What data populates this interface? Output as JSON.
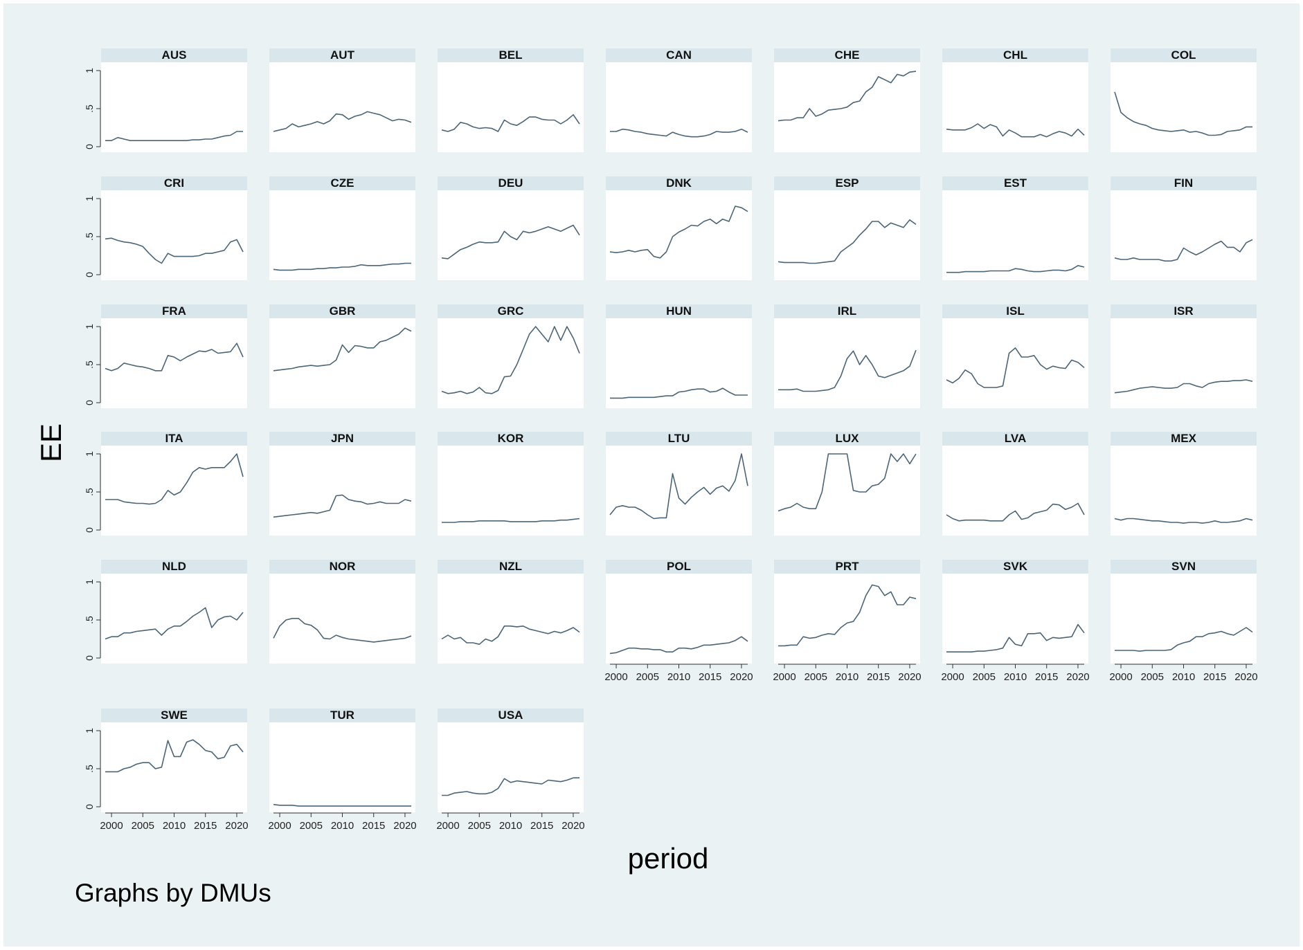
{
  "figure": {
    "ylabel": "EE",
    "xlabel": "period",
    "note": "Graphs by DMUs",
    "colors": {
      "outer_bg": "#eaf2f3",
      "panel_bg": "#ffffff",
      "strip_bg": "#d9e6eb",
      "line": "#4a6478",
      "text": "#000000"
    }
  },
  "chart_data": {
    "type": "line",
    "title": "",
    "xlabel": "period",
    "ylabel": "EE",
    "ylim": [
      0,
      1
    ],
    "xlim": [
      1999,
      2021
    ],
    "xticks": [
      "2000",
      "2005",
      "2010",
      "2015",
      "2020"
    ],
    "yticks": [
      "0",
      ".5",
      "1"
    ],
    "grid": false,
    "x": [
      1999,
      2000,
      2001,
      2002,
      2003,
      2004,
      2005,
      2006,
      2007,
      2008,
      2009,
      2010,
      2011,
      2012,
      2013,
      2014,
      2015,
      2016,
      2017,
      2018,
      2019,
      2020,
      2021
    ],
    "panels": [
      {
        "name": "AUS",
        "values": [
          0.08,
          0.08,
          0.12,
          0.1,
          0.08,
          0.08,
          0.08,
          0.08,
          0.08,
          0.08,
          0.08,
          0.08,
          0.08,
          0.08,
          0.09,
          0.09,
          0.1,
          0.1,
          0.12,
          0.14,
          0.15,
          0.2,
          0.2
        ]
      },
      {
        "name": "AUT",
        "values": [
          0.2,
          0.22,
          0.24,
          0.3,
          0.26,
          0.28,
          0.3,
          0.33,
          0.3,
          0.34,
          0.43,
          0.42,
          0.36,
          0.4,
          0.42,
          0.46,
          0.44,
          0.42,
          0.38,
          0.34,
          0.36,
          0.35,
          0.32
        ]
      },
      {
        "name": "BEL",
        "values": [
          0.22,
          0.2,
          0.23,
          0.32,
          0.3,
          0.26,
          0.24,
          0.25,
          0.24,
          0.2,
          0.35,
          0.3,
          0.28,
          0.33,
          0.39,
          0.39,
          0.36,
          0.35,
          0.35,
          0.3,
          0.35,
          0.42,
          0.3
        ]
      },
      {
        "name": "CAN",
        "values": [
          0.2,
          0.2,
          0.23,
          0.22,
          0.2,
          0.19,
          0.17,
          0.16,
          0.15,
          0.14,
          0.19,
          0.16,
          0.14,
          0.13,
          0.13,
          0.14,
          0.16,
          0.2,
          0.19,
          0.19,
          0.2,
          0.23,
          0.19
        ]
      },
      {
        "name": "CHE",
        "values": [
          0.34,
          0.35,
          0.35,
          0.38,
          0.38,
          0.5,
          0.4,
          0.43,
          0.48,
          0.49,
          0.5,
          0.52,
          0.58,
          0.6,
          0.72,
          0.78,
          0.92,
          0.88,
          0.84,
          0.95,
          0.93,
          0.98,
          0.99
        ]
      },
      {
        "name": "CHL",
        "values": [
          0.23,
          0.22,
          0.22,
          0.22,
          0.25,
          0.3,
          0.24,
          0.29,
          0.26,
          0.14,
          0.22,
          0.18,
          0.13,
          0.13,
          0.13,
          0.16,
          0.13,
          0.17,
          0.2,
          0.18,
          0.14,
          0.23,
          0.15
        ]
      },
      {
        "name": "COL",
        "values": [
          0.72,
          0.45,
          0.38,
          0.33,
          0.3,
          0.28,
          0.24,
          0.22,
          0.21,
          0.2,
          0.21,
          0.22,
          0.19,
          0.2,
          0.18,
          0.15,
          0.15,
          0.16,
          0.2,
          0.21,
          0.22,
          0.26,
          0.26
        ]
      },
      {
        "name": "CRI",
        "values": [
          0.47,
          0.48,
          0.45,
          0.43,
          0.42,
          0.4,
          0.37,
          0.28,
          0.2,
          0.15,
          0.28,
          0.24,
          0.24,
          0.24,
          0.24,
          0.25,
          0.28,
          0.28,
          0.3,
          0.32,
          0.43,
          0.46,
          0.3
        ]
      },
      {
        "name": "CZE",
        "values": [
          0.07,
          0.06,
          0.06,
          0.06,
          0.07,
          0.07,
          0.07,
          0.08,
          0.08,
          0.09,
          0.09,
          0.1,
          0.1,
          0.11,
          0.13,
          0.12,
          0.12,
          0.12,
          0.13,
          0.14,
          0.14,
          0.15,
          0.15
        ]
      },
      {
        "name": "DEU",
        "values": [
          0.22,
          0.21,
          0.27,
          0.33,
          0.36,
          0.4,
          0.43,
          0.42,
          0.42,
          0.43,
          0.57,
          0.5,
          0.46,
          0.57,
          0.55,
          0.57,
          0.6,
          0.63,
          0.6,
          0.57,
          0.61,
          0.65,
          0.52
        ]
      },
      {
        "name": "DNK",
        "values": [
          0.3,
          0.29,
          0.3,
          0.32,
          0.3,
          0.32,
          0.33,
          0.24,
          0.22,
          0.3,
          0.5,
          0.56,
          0.6,
          0.65,
          0.64,
          0.7,
          0.73,
          0.67,
          0.73,
          0.7,
          0.9,
          0.88,
          0.83
        ]
      },
      {
        "name": "ESP",
        "values": [
          0.17,
          0.16,
          0.16,
          0.16,
          0.16,
          0.15,
          0.15,
          0.16,
          0.17,
          0.18,
          0.3,
          0.36,
          0.42,
          0.52,
          0.6,
          0.7,
          0.7,
          0.62,
          0.68,
          0.65,
          0.62,
          0.72,
          0.66
        ]
      },
      {
        "name": "EST",
        "values": [
          0.03,
          0.03,
          0.03,
          0.04,
          0.04,
          0.04,
          0.04,
          0.05,
          0.05,
          0.05,
          0.05,
          0.08,
          0.07,
          0.05,
          0.04,
          0.04,
          0.05,
          0.06,
          0.06,
          0.05,
          0.07,
          0.12,
          0.1
        ]
      },
      {
        "name": "FIN",
        "values": [
          0.22,
          0.2,
          0.2,
          0.22,
          0.2,
          0.2,
          0.2,
          0.2,
          0.18,
          0.18,
          0.2,
          0.35,
          0.3,
          0.26,
          0.3,
          0.35,
          0.4,
          0.44,
          0.36,
          0.36,
          0.3,
          0.42,
          0.46
        ]
      },
      {
        "name": "FRA",
        "values": [
          0.45,
          0.42,
          0.45,
          0.52,
          0.5,
          0.48,
          0.47,
          0.45,
          0.42,
          0.42,
          0.62,
          0.6,
          0.55,
          0.6,
          0.64,
          0.68,
          0.67,
          0.7,
          0.65,
          0.66,
          0.67,
          0.78,
          0.6
        ]
      },
      {
        "name": "GBR",
        "values": [
          0.42,
          0.43,
          0.44,
          0.45,
          0.47,
          0.48,
          0.49,
          0.48,
          0.49,
          0.5,
          0.56,
          0.76,
          0.66,
          0.75,
          0.74,
          0.72,
          0.72,
          0.8,
          0.82,
          0.86,
          0.9,
          0.98,
          0.94
        ]
      },
      {
        "name": "GRC",
        "values": [
          0.15,
          0.12,
          0.13,
          0.15,
          0.12,
          0.14,
          0.2,
          0.13,
          0.12,
          0.16,
          0.34,
          0.35,
          0.5,
          0.7,
          0.9,
          1.0,
          0.9,
          0.8,
          1.0,
          0.82,
          1.0,
          0.85,
          0.65
        ]
      },
      {
        "name": "HUN",
        "values": [
          0.06,
          0.06,
          0.06,
          0.07,
          0.07,
          0.07,
          0.07,
          0.07,
          0.08,
          0.09,
          0.09,
          0.14,
          0.15,
          0.17,
          0.18,
          0.18,
          0.14,
          0.15,
          0.19,
          0.14,
          0.1,
          0.1,
          0.1
        ]
      },
      {
        "name": "IRL",
        "values": [
          0.17,
          0.17,
          0.17,
          0.18,
          0.15,
          0.15,
          0.15,
          0.16,
          0.17,
          0.2,
          0.35,
          0.58,
          0.68,
          0.5,
          0.62,
          0.5,
          0.35,
          0.33,
          0.36,
          0.39,
          0.42,
          0.48,
          0.69
        ]
      },
      {
        "name": "ISL",
        "values": [
          0.3,
          0.26,
          0.32,
          0.43,
          0.38,
          0.25,
          0.2,
          0.2,
          0.2,
          0.22,
          0.65,
          0.72,
          0.6,
          0.6,
          0.62,
          0.5,
          0.44,
          0.48,
          0.46,
          0.45,
          0.56,
          0.53,
          0.46
        ]
      },
      {
        "name": "ISR",
        "values": [
          0.13,
          0.14,
          0.15,
          0.17,
          0.19,
          0.2,
          0.21,
          0.2,
          0.19,
          0.19,
          0.2,
          0.25,
          0.25,
          0.22,
          0.2,
          0.25,
          0.27,
          0.28,
          0.28,
          0.29,
          0.29,
          0.3,
          0.28
        ]
      },
      {
        "name": "ITA",
        "values": [
          0.4,
          0.4,
          0.4,
          0.37,
          0.36,
          0.35,
          0.35,
          0.34,
          0.35,
          0.4,
          0.52,
          0.46,
          0.5,
          0.62,
          0.76,
          0.82,
          0.8,
          0.82,
          0.82,
          0.82,
          0.9,
          1.0,
          0.7
        ]
      },
      {
        "name": "JPN",
        "values": [
          0.17,
          0.18,
          0.19,
          0.2,
          0.21,
          0.22,
          0.23,
          0.22,
          0.24,
          0.26,
          0.45,
          0.46,
          0.4,
          0.38,
          0.37,
          0.34,
          0.35,
          0.37,
          0.35,
          0.35,
          0.35,
          0.4,
          0.38
        ]
      },
      {
        "name": "KOR",
        "values": [
          0.1,
          0.1,
          0.1,
          0.11,
          0.11,
          0.11,
          0.12,
          0.12,
          0.12,
          0.12,
          0.12,
          0.11,
          0.11,
          0.11,
          0.11,
          0.11,
          0.12,
          0.12,
          0.12,
          0.13,
          0.13,
          0.14,
          0.15
        ]
      },
      {
        "name": "LTU",
        "values": [
          0.2,
          0.3,
          0.32,
          0.3,
          0.3,
          0.26,
          0.2,
          0.15,
          0.16,
          0.16,
          0.74,
          0.42,
          0.34,
          0.43,
          0.5,
          0.56,
          0.47,
          0.55,
          0.58,
          0.51,
          0.65,
          1.0,
          0.58
        ]
      },
      {
        "name": "LUX",
        "values": [
          0.25,
          0.28,
          0.3,
          0.35,
          0.3,
          0.28,
          0.28,
          0.5,
          1.0,
          1.0,
          1.0,
          1.0,
          0.52,
          0.5,
          0.5,
          0.58,
          0.6,
          0.68,
          1.0,
          0.9,
          1.0,
          0.87,
          1.0
        ]
      },
      {
        "name": "LVA",
        "values": [
          0.2,
          0.15,
          0.12,
          0.13,
          0.13,
          0.13,
          0.13,
          0.12,
          0.12,
          0.12,
          0.2,
          0.25,
          0.14,
          0.16,
          0.22,
          0.24,
          0.26,
          0.34,
          0.33,
          0.27,
          0.3,
          0.35,
          0.2
        ]
      },
      {
        "name": "MEX",
        "values": [
          0.15,
          0.13,
          0.15,
          0.15,
          0.14,
          0.13,
          0.12,
          0.12,
          0.11,
          0.1,
          0.1,
          0.09,
          0.1,
          0.1,
          0.09,
          0.1,
          0.12,
          0.1,
          0.1,
          0.11,
          0.12,
          0.15,
          0.13
        ]
      },
      {
        "name": "NLD",
        "values": [
          0.25,
          0.28,
          0.28,
          0.33,
          0.33,
          0.35,
          0.36,
          0.37,
          0.38,
          0.3,
          0.38,
          0.42,
          0.42,
          0.48,
          0.55,
          0.6,
          0.66,
          0.4,
          0.5,
          0.54,
          0.55,
          0.5,
          0.6
        ]
      },
      {
        "name": "NOR",
        "values": [
          0.26,
          0.42,
          0.5,
          0.52,
          0.52,
          0.45,
          0.43,
          0.37,
          0.26,
          0.25,
          0.3,
          0.27,
          0.25,
          0.24,
          0.23,
          0.22,
          0.21,
          0.22,
          0.23,
          0.24,
          0.25,
          0.26,
          0.29
        ]
      },
      {
        "name": "NZL",
        "values": [
          0.25,
          0.3,
          0.25,
          0.27,
          0.2,
          0.2,
          0.18,
          0.25,
          0.22,
          0.28,
          0.42,
          0.42,
          0.41,
          0.42,
          0.38,
          0.36,
          0.34,
          0.32,
          0.35,
          0.33,
          0.36,
          0.4,
          0.34
        ]
      },
      {
        "name": "POL",
        "values": [
          0.06,
          0.07,
          0.1,
          0.13,
          0.13,
          0.12,
          0.12,
          0.11,
          0.11,
          0.08,
          0.08,
          0.13,
          0.13,
          0.12,
          0.14,
          0.17,
          0.17,
          0.18,
          0.19,
          0.2,
          0.23,
          0.28,
          0.22
        ]
      },
      {
        "name": "PRT",
        "values": [
          0.16,
          0.16,
          0.17,
          0.17,
          0.28,
          0.26,
          0.27,
          0.3,
          0.32,
          0.31,
          0.4,
          0.46,
          0.48,
          0.6,
          0.82,
          0.96,
          0.94,
          0.82,
          0.87,
          0.7,
          0.7,
          0.8,
          0.78
        ]
      },
      {
        "name": "SVK",
        "values": [
          0.08,
          0.08,
          0.08,
          0.08,
          0.08,
          0.09,
          0.09,
          0.1,
          0.11,
          0.13,
          0.27,
          0.18,
          0.16,
          0.32,
          0.32,
          0.33,
          0.23,
          0.27,
          0.26,
          0.27,
          0.28,
          0.44,
          0.33
        ]
      },
      {
        "name": "SVN",
        "values": [
          0.1,
          0.1,
          0.1,
          0.1,
          0.09,
          0.1,
          0.1,
          0.1,
          0.1,
          0.11,
          0.17,
          0.2,
          0.22,
          0.28,
          0.28,
          0.32,
          0.33,
          0.35,
          0.32,
          0.3,
          0.35,
          0.4,
          0.34
        ]
      },
      {
        "name": "SWE",
        "values": [
          0.46,
          0.46,
          0.46,
          0.5,
          0.52,
          0.56,
          0.58,
          0.58,
          0.5,
          0.52,
          0.87,
          0.66,
          0.66,
          0.85,
          0.88,
          0.82,
          0.74,
          0.72,
          0.63,
          0.65,
          0.8,
          0.82,
          0.72
        ]
      },
      {
        "name": "TUR",
        "values": [
          0.03,
          0.02,
          0.02,
          0.02,
          0.01,
          0.01,
          0.01,
          0.01,
          0.01,
          0.01,
          0.01,
          0.01,
          0.01,
          0.01,
          0.01,
          0.01,
          0.01,
          0.01,
          0.01,
          0.01,
          0.01,
          0.01,
          0.01
        ]
      },
      {
        "name": "USA",
        "values": [
          0.15,
          0.15,
          0.18,
          0.19,
          0.2,
          0.18,
          0.17,
          0.17,
          0.19,
          0.24,
          0.37,
          0.32,
          0.34,
          0.33,
          0.32,
          0.31,
          0.3,
          0.35,
          0.34,
          0.33,
          0.35,
          0.38,
          0.38
        ]
      }
    ]
  }
}
